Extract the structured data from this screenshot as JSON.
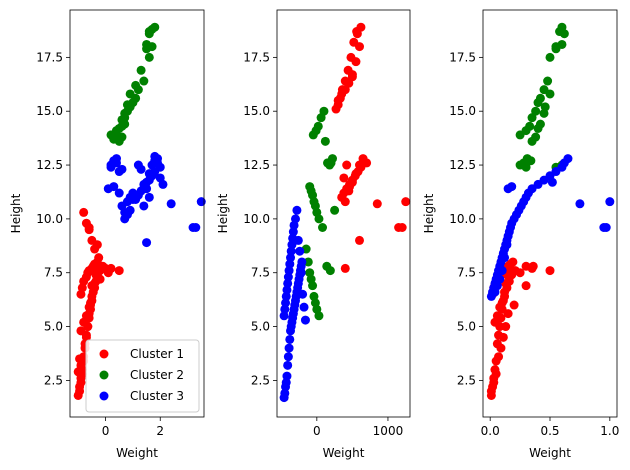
{
  "chart_data": [
    {
      "type": "scatter",
      "title": "",
      "xlabel": "Weight",
      "ylabel": "Height",
      "xlim": [
        -1.3,
        3.6
      ],
      "ylim": [
        0.8,
        19.7
      ],
      "xticks": [
        0,
        2
      ],
      "yticks": [
        2.5,
        5.0,
        7.5,
        10.0,
        12.5,
        15.0,
        17.5
      ],
      "tick_labels_x": [
        "0",
        "2"
      ],
      "tick_labels_y": [
        "2.5",
        "5.0",
        "7.5",
        "10.0",
        "12.5",
        "15.0",
        "17.5"
      ],
      "legend": {
        "position": "lower-right",
        "entries": [
          "Cluster 1",
          "Cluster 2",
          "Cluster 3"
        ]
      },
      "series": [
        {
          "name": "Cluster 1",
          "color": "#ff0000",
          "x": [
            -1.0,
            -0.95,
            -0.9,
            -0.85,
            -0.8,
            -0.75,
            -0.7,
            -0.65,
            -0.6,
            -0.55,
            -0.5,
            -0.45,
            -0.4,
            -0.35,
            -0.3,
            -0.25,
            -0.9,
            -0.85,
            -0.8,
            -0.7,
            -0.65,
            -0.6,
            -0.5,
            -0.45,
            -0.4,
            -0.3,
            -0.2,
            -0.1,
            0.0,
            0.1,
            0.2,
            0.5,
            -0.8,
            -0.7,
            -0.6,
            -0.55,
            -0.5,
            -0.4,
            -0.35,
            -0.3,
            -0.95,
            -0.9,
            -0.85,
            -0.8,
            -0.75,
            -0.7,
            -0.65,
            -0.6,
            -0.55,
            -0.5,
            -0.2,
            -0.4,
            -0.3,
            -0.5,
            -0.6,
            -0.7,
            -0.8,
            -0.9,
            -1.0,
            -0.95,
            -0.9,
            -0.6
          ],
          "y": [
            1.8,
            2.2,
            2.6,
            3.0,
            3.4,
            4.2,
            4.6,
            5.0,
            5.4,
            5.8,
            6.2,
            6.6,
            7.0,
            7.4,
            7.8,
            8.2,
            6.5,
            6.8,
            7.1,
            7.3,
            7.5,
            7.6,
            7.7,
            7.8,
            7.9,
            8.0,
            7.6,
            7.8,
            7.7,
            7.5,
            7.7,
            7.6,
            5.2,
            5.5,
            5.9,
            6.1,
            6.4,
            6.8,
            7.1,
            7.4,
            2.0,
            2.4,
            2.8,
            3.6,
            4.0,
            4.5,
            5.0,
            5.6,
            6.0,
            6.9,
            7.2,
            8.6,
            8.8,
            9.0,
            9.5,
            9.8,
            10.3,
            3.2,
            2.9,
            3.5,
            4.8,
            9.6
          ]
        },
        {
          "name": "Cluster 2",
          "color": "#008000",
          "x": [
            0.2,
            0.4,
            0.6,
            0.7,
            0.8,
            0.5,
            0.6,
            0.7,
            0.9,
            1.0,
            1.1,
            1.2,
            1.4,
            1.6,
            1.7,
            1.8,
            1.6,
            1.5,
            1.3,
            1.1,
            0.9,
            0.8,
            0.7,
            0.6,
            0.5,
            0.4,
            0.3,
            1.7,
            1.6,
            1.5
          ],
          "y": [
            13.9,
            14.1,
            14.3,
            14.7,
            15.0,
            13.6,
            13.8,
            14.4,
            15.2,
            15.4,
            15.6,
            16.0,
            16.4,
            17.5,
            18.0,
            18.9,
            18.7,
            18.1,
            16.9,
            16.2,
            15.8,
            15.3,
            14.9,
            14.6,
            14.2,
            13.9,
            13.7,
            18.8,
            18.6,
            17.9
          ]
        },
        {
          "name": "Cluster 3",
          "color": "#0000ff",
          "x": [
            0.2,
            0.3,
            0.4,
            0.5,
            0.6,
            0.7,
            0.8,
            0.9,
            1.0,
            1.1,
            1.2,
            1.3,
            1.4,
            1.5,
            1.6,
            1.7,
            1.8,
            1.9,
            2.0,
            2.1,
            0.3,
            0.5,
            0.7,
            0.9,
            1.1,
            1.3,
            1.5,
            1.7,
            2.4,
            3.2,
            3.3,
            3.5,
            1.5,
            0.1,
            0.2,
            0.4,
            0.6,
            0.8,
            1.0,
            1.2,
            1.4,
            1.6,
            1.8,
            1.9,
            2.0,
            1.8,
            1.6,
            1.4
          ],
          "y": [
            12.5,
            12.7,
            12.6,
            12.2,
            10.6,
            10.3,
            10.8,
            11.0,
            11.2,
            11.1,
            12.5,
            12.3,
            11.6,
            11.4,
            12.1,
            12.5,
            12.7,
            12.8,
            11.9,
            11.6,
            11.5,
            11.2,
            10.0,
            10.4,
            10.9,
            11.3,
            11.7,
            12.0,
            10.7,
            9.6,
            9.6,
            10.8,
            8.9,
            11.4,
            12.4,
            12.8,
            12.3,
            10.2,
            10.9,
            11.1,
            11.4,
            11.8,
            12.2,
            12.6,
            12.4,
            12.9,
            11.0,
            10.6
          ]
        }
      ]
    },
    {
      "type": "scatter",
      "title": "",
      "xlabel": "Weight",
      "ylabel": "Height",
      "xlim": [
        -560,
        1310
      ],
      "ylim": [
        0.8,
        19.7
      ],
      "xticks": [
        0,
        1000
      ],
      "yticks": [
        2.5,
        5.0,
        7.5,
        10.0,
        12.5,
        15.0,
        17.5
      ],
      "tick_labels_x": [
        "0",
        "1000"
      ],
      "tick_labels_y": [
        "2.5",
        "5.0",
        "7.5",
        "10.0",
        "12.5",
        "15.0",
        "17.5"
      ],
      "series": [
        {
          "name": "Cluster 1",
          "color": "#ff0000",
          "x": [
            300,
            350,
            400,
            450,
            500,
            550,
            600,
            620,
            560,
            520,
            480,
            440,
            400,
            360,
            330,
            300,
            270,
            620,
            580,
            540,
            500,
            460,
            420,
            380,
            350,
            400,
            450,
            500,
            550,
            600,
            650,
            700,
            600,
            850,
            1150,
            1200,
            1250,
            570,
            500,
            420,
            380,
            400,
            460
          ],
          "y": [
            15.5,
            15.8,
            16.0,
            16.3,
            16.6,
            17.3,
            18.0,
            18.9,
            18.7,
            18.2,
            17.5,
            16.9,
            16.4,
            16.0,
            15.6,
            15.3,
            15.1,
            12.4,
            12.2,
            12.0,
            11.8,
            11.6,
            11.4,
            11.2,
            11.0,
            10.8,
            11.3,
            11.7,
            12.1,
            12.5,
            12.8,
            12.6,
            9.0,
            10.7,
            9.6,
            9.6,
            10.8,
            18.6,
            16.7,
            12.5,
            11.9,
            7.7,
            11.5
          ]
        },
        {
          "name": "Cluster 2",
          "color": "#008000",
          "x": [
            -50,
            -10,
            20,
            60,
            100,
            120,
            150,
            180,
            200,
            220,
            -100,
            -80,
            -60,
            -40,
            -20,
            0,
            30,
            80,
            140,
            190,
            250,
            -150,
            -120,
            -100,
            -80,
            -60,
            -40,
            -20,
            0,
            30
          ],
          "y": [
            13.9,
            14.1,
            14.3,
            14.7,
            15.0,
            13.6,
            12.6,
            12.5,
            12.6,
            12.8,
            11.5,
            11.3,
            11.1,
            10.8,
            10.6,
            10.3,
            10.0,
            9.6,
            7.8,
            7.6,
            10.4,
            8.6,
            8.0,
            7.5,
            7.2,
            6.9,
            6.4,
            6.1,
            5.8,
            5.5
          ]
        },
        {
          "name": "Cluster 3",
          "color": "#0000ff",
          "x": [
            -460,
            -450,
            -440,
            -430,
            -420,
            -410,
            -400,
            -390,
            -380,
            -370,
            -360,
            -350,
            -340,
            -330,
            -320,
            -310,
            -300,
            -290,
            -280,
            -270,
            -260,
            -250,
            -240,
            -230,
            -220,
            -210,
            -460,
            -450,
            -440,
            -430,
            -420,
            -410,
            -400,
            -390,
            -380,
            -370,
            -360,
            -350,
            -340,
            -330,
            -320,
            -300,
            -280,
            -260,
            -240,
            -220,
            -200,
            -180,
            -160
          ],
          "y": [
            1.7,
            1.9,
            2.2,
            2.4,
            2.7,
            3.2,
            3.6,
            4.0,
            4.4,
            4.8,
            5.0,
            5.2,
            5.4,
            5.6,
            5.8,
            6.0,
            6.2,
            6.4,
            6.6,
            6.8,
            7.0,
            7.2,
            7.4,
            7.6,
            7.8,
            8.0,
            5.5,
            5.8,
            6.1,
            6.4,
            6.7,
            7.0,
            7.3,
            7.6,
            7.9,
            8.2,
            8.5,
            8.8,
            9.1,
            9.4,
            9.7,
            10.0,
            10.4,
            9.0,
            8.5,
            7.5,
            6.5,
            5.9,
            5.3
          ]
        }
      ]
    },
    {
      "type": "scatter",
      "title": "",
      "xlabel": "Weight",
      "ylabel": "Height",
      "xlim": [
        -0.06,
        1.06
      ],
      "ylim": [
        0.8,
        19.7
      ],
      "xticks": [
        0.0,
        0.5,
        1.0
      ],
      "yticks": [
        2.5,
        5.0,
        7.5,
        10.0,
        12.5,
        15.0,
        17.5
      ],
      "tick_labels_x": [
        "0.0",
        "0.5",
        "1.0"
      ],
      "tick_labels_y": [
        "2.5",
        "5.0",
        "7.5",
        "10.0",
        "12.5",
        "15.0",
        "17.5"
      ],
      "series": [
        {
          "name": "Cluster 1",
          "color": "#ff0000",
          "x": [
            0.01,
            0.02,
            0.03,
            0.04,
            0.05,
            0.06,
            0.07,
            0.08,
            0.09,
            0.1,
            0.11,
            0.12,
            0.13,
            0.14,
            0.15,
            0.16,
            0.02,
            0.03,
            0.05,
            0.07,
            0.09,
            0.11,
            0.13,
            0.15,
            0.17,
            0.19,
            0.21,
            0.25,
            0.3,
            0.35,
            0.5,
            0.04,
            0.06,
            0.08,
            0.1,
            0.12,
            0.14,
            0.16,
            0.18,
            0.01,
            0.03,
            0.05,
            0.07,
            0.09,
            0.11,
            0.13,
            0.15,
            0.2,
            0.3,
            0.36
          ],
          "y": [
            1.8,
            2.2,
            2.6,
            3.0,
            3.4,
            4.2,
            4.6,
            5.0,
            5.4,
            5.8,
            6.2,
            6.6,
            7.0,
            7.4,
            7.8,
            7.7,
            6.5,
            6.8,
            7.1,
            7.3,
            7.5,
            7.6,
            7.7,
            7.8,
            7.9,
            8.0,
            7.6,
            7.5,
            7.8,
            7.7,
            7.6,
            5.2,
            5.5,
            5.9,
            6.1,
            6.4,
            6.8,
            7.1,
            7.4,
            2.0,
            2.4,
            2.8,
            3.6,
            4.0,
            4.5,
            5.0,
            5.6,
            6.0,
            6.9,
            7.8
          ]
        },
        {
          "name": "Cluster 2",
          "color": "#008000",
          "x": [
            0.25,
            0.3,
            0.33,
            0.35,
            0.38,
            0.4,
            0.42,
            0.45,
            0.48,
            0.5,
            0.55,
            0.58,
            0.6,
            0.62,
            0.25,
            0.28,
            0.31,
            0.35,
            0.38,
            0.42,
            0.46,
            0.5,
            0.55,
            0.6,
            0.3,
            0.34,
            0.4,
            0.45,
            0.55,
            0.6
          ],
          "y": [
            13.9,
            14.1,
            14.3,
            14.7,
            15.0,
            15.4,
            15.6,
            16.0,
            16.4,
            17.5,
            18.0,
            18.7,
            18.9,
            18.6,
            12.5,
            12.6,
            12.8,
            13.6,
            13.8,
            14.4,
            15.2,
            15.8,
            17.9,
            18.1,
            12.4,
            12.7,
            14.2,
            14.9,
            12.4,
            12.5
          ]
        },
        {
          "name": "Cluster 3",
          "color": "#0000ff",
          "x": [
            0.01,
            0.02,
            0.03,
            0.04,
            0.05,
            0.06,
            0.07,
            0.08,
            0.09,
            0.1,
            0.11,
            0.12,
            0.13,
            0.14,
            0.15,
            0.16,
            0.17,
            0.18,
            0.2,
            0.22,
            0.24,
            0.26,
            0.28,
            0.3,
            0.32,
            0.35,
            0.4,
            0.45,
            0.5,
            0.52,
            0.55,
            0.6,
            0.62,
            0.65,
            0.75,
            0.95,
            0.97,
            1.0,
            0.15,
            0.18,
            0.14,
            0.12,
            0.1,
            0.08,
            0.06,
            0.04
          ],
          "y": [
            6.4,
            6.6,
            6.8,
            7.0,
            7.2,
            7.4,
            7.6,
            7.8,
            8.0,
            8.2,
            8.4,
            8.6,
            8.8,
            9.0,
            9.2,
            9.4,
            9.6,
            9.8,
            10.0,
            10.2,
            10.4,
            10.6,
            10.8,
            11.0,
            11.2,
            11.4,
            11.6,
            11.8,
            12.0,
            11.7,
            12.2,
            12.4,
            12.6,
            12.8,
            10.7,
            9.6,
            9.6,
            10.8,
            11.4,
            11.5,
            8.8,
            8.2,
            7.6,
            7.2,
            6.9,
            6.6
          ]
        }
      ]
    }
  ]
}
